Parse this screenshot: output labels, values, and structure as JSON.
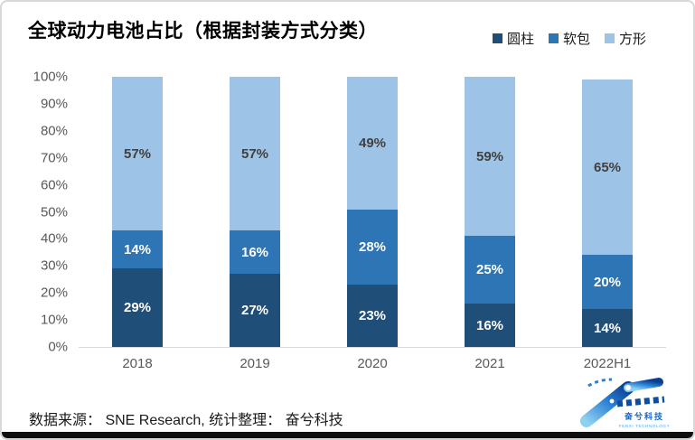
{
  "title": "全球动力电池占比（根据封装方式分类）",
  "source": "数据来源： SNE Research, 统计整理： 奋兮科技",
  "logo": {
    "cn": "奋兮科技",
    "en": "FENXI TECHNOLOGY"
  },
  "colors": {
    "cylindrical_dark_blue": "#1F4E79",
    "pouch_medium_blue": "#2E75B6",
    "prismatic_light_blue": "#9DC3E6",
    "axis_text_gray": "#595959",
    "bottom_band": "#0f0f0f"
  },
  "chart_data": {
    "type": "bar",
    "stacked": true,
    "title": "全球动力电池占比（根据封装方式分类）",
    "categories": [
      "2018",
      "2019",
      "2020",
      "2021",
      "2022H1"
    ],
    "series": [
      {
        "name": "圆柱",
        "color": "#1F4E79",
        "label_color": "#FFFFFF",
        "values": [
          29,
          27,
          23,
          16,
          14
        ]
      },
      {
        "name": "软包",
        "color": "#2E75B6",
        "label_color": "#FFFFFF",
        "values": [
          14,
          16,
          28,
          25,
          20
        ]
      },
      {
        "name": "方形",
        "color": "#9DC3E6",
        "label_color": "#404040",
        "values": [
          57,
          57,
          49,
          59,
          65
        ]
      }
    ],
    "value_suffix": "%",
    "xlabel": "",
    "ylabel": "",
    "ylim": [
      0,
      100
    ],
    "yticks": [
      "0%",
      "10%",
      "20%",
      "30%",
      "40%",
      "50%",
      "60%",
      "70%",
      "80%",
      "90%",
      "100%"
    ],
    "grid": false,
    "legend_position": "top-right",
    "data_labels": true
  }
}
